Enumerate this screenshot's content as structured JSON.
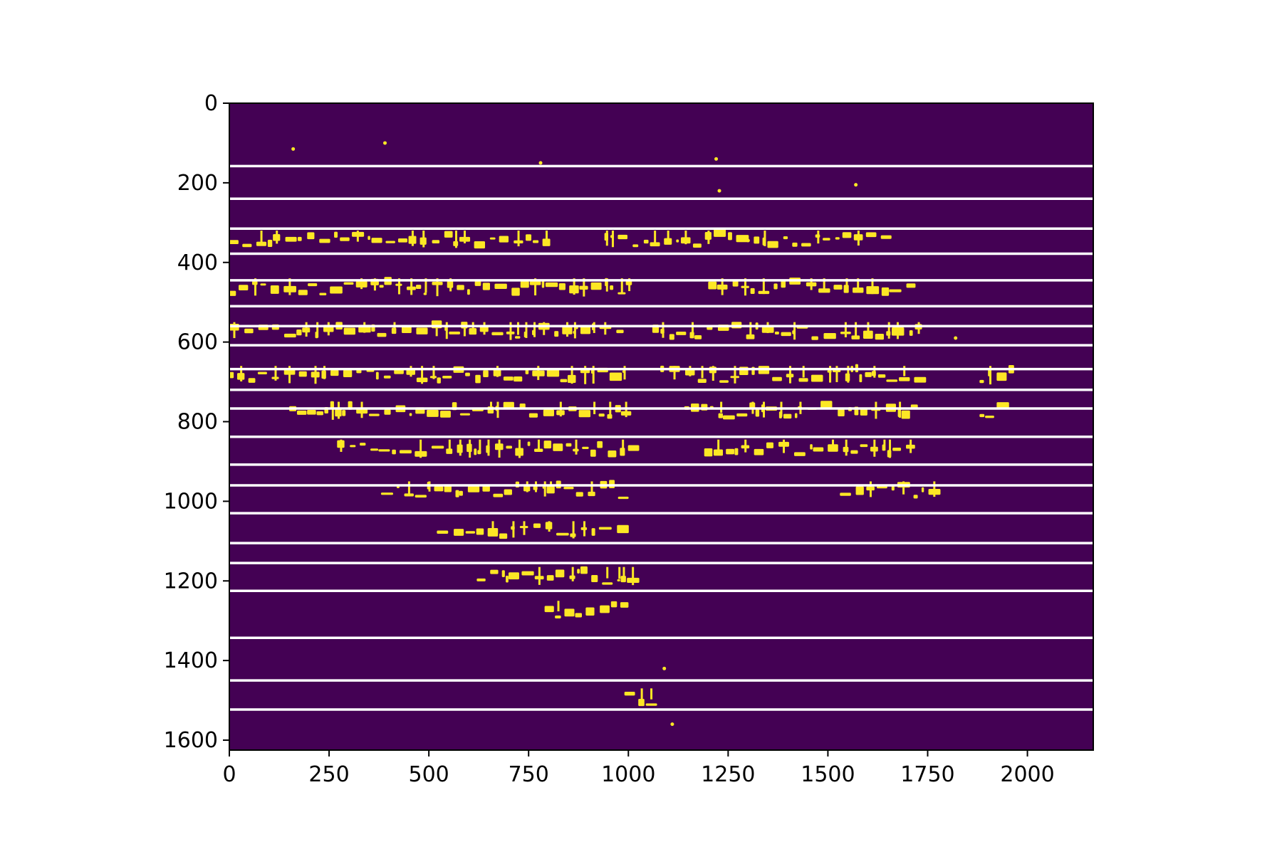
{
  "chart_data": {
    "type": "heatmap",
    "title": "",
    "xlabel": "",
    "ylabel": "",
    "xlim": [
      0,
      2165
    ],
    "ylim": [
      1625,
      0
    ],
    "grid": false,
    "x_ticks": [
      0,
      250,
      500,
      750,
      1000,
      1250,
      1500,
      1750,
      2000
    ],
    "y_ticks": [
      0,
      200,
      400,
      600,
      800,
      1000,
      1200,
      1400,
      1600
    ],
    "x_tick_labels": [
      "0",
      "250",
      "500",
      "750",
      "1000",
      "1250",
      "1500",
      "1750",
      "2000"
    ],
    "y_tick_labels": [
      "0",
      "200",
      "400",
      "600",
      "800",
      "1000",
      "1200",
      "1400",
      "1600"
    ],
    "colormap": "viridis",
    "background_color": "#440154",
    "foreground_color": "#fde725",
    "line_color": "#ffffff",
    "horizontal_line_rows": [
      158,
      240,
      315,
      378,
      445,
      510,
      560,
      608,
      668,
      720,
      767,
      838,
      908,
      960,
      1030,
      1105,
      1155,
      1225,
      1343,
      1450,
      1523
    ],
    "ink_bands": [
      {
        "y": 350,
        "segments": [
          [
            0,
            790
          ],
          [
            940,
            1670
          ]
        ]
      },
      {
        "y": 470,
        "segments": [
          [
            0,
            1000
          ],
          [
            1200,
            1720
          ]
        ]
      },
      {
        "y": 580,
        "segments": [
          [
            0,
            990
          ],
          [
            1060,
            1720
          ]
        ]
      },
      {
        "y": 690,
        "segments": [
          [
            0,
            1000
          ],
          [
            1080,
            1720
          ],
          [
            1880,
            1960
          ]
        ]
      },
      {
        "y": 780,
        "segments": [
          [
            150,
            1000
          ],
          [
            1140,
            1720
          ],
          [
            1880,
            1960
          ]
        ]
      },
      {
        "y": 875,
        "segments": [
          [
            270,
            1000
          ],
          [
            1190,
            1720
          ]
        ]
      },
      {
        "y": 980,
        "segments": [
          [
            380,
            1000
          ],
          [
            1530,
            1770
          ]
        ]
      },
      {
        "y": 1080,
        "segments": [
          [
            520,
            1000
          ]
        ]
      },
      {
        "y": 1195,
        "segments": [
          [
            620,
            1000
          ]
        ]
      },
      {
        "y": 1280,
        "segments": [
          [
            790,
            990
          ]
        ]
      },
      {
        "y": 1500,
        "segments": [
          [
            990,
            1050
          ]
        ]
      }
    ]
  }
}
